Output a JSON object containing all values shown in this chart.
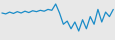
{
  "values": [
    1.0,
    0.8,
    1.2,
    0.9,
    1.3,
    1.0,
    1.4,
    1.1,
    1.5,
    1.3,
    1.6,
    1.4,
    1.8,
    1.6,
    3.0,
    1.0,
    -1.5,
    -0.8,
    -2.5,
    -1.0,
    -3.0,
    -0.5,
    -2.5,
    0.2,
    -1.5,
    1.8,
    -1.0,
    1.2,
    0.2,
    1.8
  ],
  "line_color": "#1a8cc8",
  "linewidth": 0.9,
  "background_color": "#e8e8e8"
}
